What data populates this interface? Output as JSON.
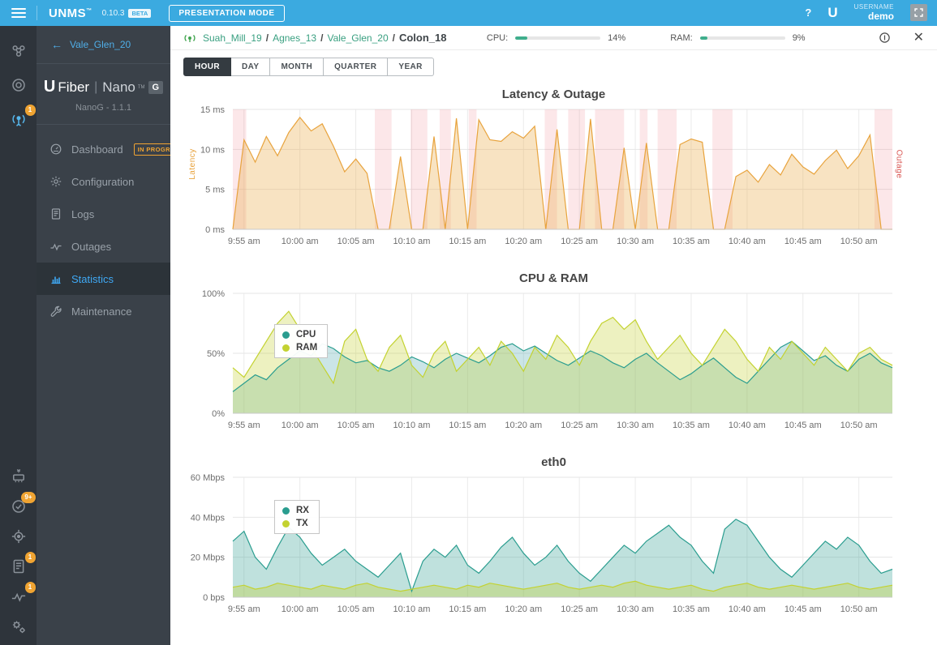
{
  "topbar": {
    "brand": "UNMS",
    "brand_mark": "™",
    "version": "0.10.3",
    "beta_label": "BETA",
    "presentation_mode_label": "PRESENTATION MODE",
    "help_label": "?",
    "ubiquiti_glyph": "U",
    "username_label": "USERNAME",
    "user": "demo",
    "accent_color": "#3BAAE0"
  },
  "rail": {
    "badge_color": "#F0A432",
    "top": [
      {
        "icon": "sites-icon",
        "badge": ""
      },
      {
        "icon": "devices-icon",
        "badge": ""
      },
      {
        "icon": "wireless-icon",
        "badge": "1",
        "active": true
      }
    ],
    "bottom": [
      {
        "icon": "firmware-icon",
        "badge": ""
      },
      {
        "icon": "tasks-icon",
        "badge": "9+"
      },
      {
        "icon": "discovery-icon",
        "badge": ""
      },
      {
        "icon": "logs-icon",
        "badge": "1"
      },
      {
        "icon": "outages-icon",
        "badge": "1"
      },
      {
        "icon": "settings-icon",
        "badge": ""
      }
    ]
  },
  "sidebar": {
    "back_label": "Vale_Glen_20",
    "back_arrow": "←",
    "brand": {
      "u": "U",
      "fiber": "Fiber",
      "pipe": "|",
      "nano": "Nano",
      "tm": "TM",
      "g": "G"
    },
    "model": "NanoG - 1.1.1",
    "items": [
      {
        "label": "Dashboard",
        "icon": "dashboard-icon",
        "badge": "IN PROGRESS",
        "active": false
      },
      {
        "label": "Configuration",
        "icon": "configuration-icon",
        "badge": "",
        "active": false
      },
      {
        "label": "Logs",
        "icon": "logs-icon",
        "badge": "",
        "active": false
      },
      {
        "label": "Outages",
        "icon": "outages-icon",
        "badge": "",
        "active": false
      },
      {
        "label": "Statistics",
        "icon": "statistics-icon",
        "badge": "",
        "active": true
      },
      {
        "label": "Maintenance",
        "icon": "maintenance-icon",
        "badge": "",
        "active": false
      }
    ]
  },
  "header": {
    "breadcrumb": {
      "separator": "/",
      "links": [
        "Suah_Mill_19",
        "Agnes_13",
        "Vale_Glen_20"
      ],
      "current": "Colon_18"
    },
    "cpu": {
      "label": "CPU:",
      "value": "14%",
      "pct": 14
    },
    "ram": {
      "label": "RAM:",
      "value": "9%",
      "pct": 9
    },
    "progress_color": "#3FAE8C",
    "close_glyph": "✕"
  },
  "tabs": {
    "active": "HOUR",
    "items": [
      "HOUR",
      "DAY",
      "MONTH",
      "QUARTER",
      "YEAR"
    ]
  },
  "chart_data": [
    {
      "type": "area",
      "title": "Latency & Outage",
      "ylabel_left": "Latency",
      "ylabel_right": "Outage",
      "ylim": [
        0,
        15
      ],
      "y_ticks": [
        {
          "value": 15,
          "label": "15 ms"
        },
        {
          "value": 10,
          "label": "10 ms"
        },
        {
          "value": 5,
          "label": "5 ms"
        },
        {
          "value": 0,
          "label": "0 ms"
        }
      ],
      "x_range": [
        0,
        59
      ],
      "x_tick_positions": [
        1,
        6,
        11,
        16,
        21,
        26,
        31,
        36,
        41,
        46,
        51,
        56
      ],
      "x_ticks": [
        "9:55 am",
        "10:00 am",
        "10:05 am",
        "10:10 am",
        "10:15 am",
        "10:20 am",
        "10:25 am",
        "10:30 am",
        "10:35 am",
        "10:40 am",
        "10:45 am",
        "10:50 am"
      ],
      "grid": true,
      "legend_position": "none",
      "outage_color": "rgba(235,115,125,0.17)",
      "outage_bands": [
        [
          0,
          1.2
        ],
        [
          12.7,
          14.2
        ],
        [
          15.9,
          17.4
        ],
        [
          18.5,
          19.5
        ],
        [
          21.1,
          21.8
        ],
        [
          27.9,
          29.0
        ],
        [
          30.0,
          31.5
        ],
        [
          32.4,
          35.0
        ],
        [
          36.4,
          37.1
        ],
        [
          38.0,
          39.7
        ],
        [
          42.9,
          44.7
        ],
        [
          57.4,
          59.0
        ]
      ],
      "series": [
        {
          "name": "Latency",
          "color": "#E8A33D",
          "fill": "rgba(235,175,80,0.35)",
          "values": [
            0,
            11.2,
            8.4,
            11.6,
            9.2,
            12.1,
            14,
            12.3,
            13.2,
            10.4,
            7.2,
            8.8,
            7,
            0,
            0,
            9.1,
            0,
            0,
            11.6,
            0,
            13.9,
            0,
            13.7,
            11.2,
            11,
            12.2,
            11.4,
            12.9,
            0,
            12.5,
            0,
            0,
            13.8,
            0,
            0,
            10.2,
            0,
            10.8,
            0,
            0,
            10.6,
            11.3,
            10.9,
            0,
            0,
            6.6,
            7.4,
            5.9,
            8.1,
            6.8,
            9.4,
            7.8,
            6.9,
            8.6,
            9.9,
            7.6,
            9.2,
            11.8,
            0,
            0
          ]
        }
      ]
    },
    {
      "type": "area",
      "title": "CPU & RAM",
      "ylim": [
        0,
        100
      ],
      "y_ticks": [
        {
          "value": 100,
          "label": "100%"
        },
        {
          "value": 50,
          "label": "50%"
        },
        {
          "value": 0,
          "label": "0%"
        }
      ],
      "x_range": [
        0,
        59
      ],
      "x_tick_positions": [
        1,
        6,
        11,
        16,
        21,
        26,
        31,
        36,
        41,
        46,
        51,
        56
      ],
      "x_ticks": [
        "9:55 am",
        "10:00 am",
        "10:05 am",
        "10:10 am",
        "10:15 am",
        "10:20 am",
        "10:25 am",
        "10:30 am",
        "10:35 am",
        "10:40 am",
        "10:45 am",
        "10:50 am"
      ],
      "grid": true,
      "legend_position": "inside-left",
      "series": [
        {
          "name": "CPU",
          "color": "#2A9D8F",
          "fill": "rgba(69,160,168,0.28)",
          "values": [
            18,
            25,
            32,
            28,
            38,
            45,
            52,
            48,
            58,
            54,
            47,
            42,
            44,
            38,
            35,
            40,
            47,
            43,
            38,
            45,
            50,
            46,
            42,
            48,
            55,
            58,
            52,
            56,
            50,
            44,
            40,
            46,
            52,
            48,
            42,
            38,
            45,
            50,
            42,
            35,
            28,
            33,
            40,
            46,
            38,
            30,
            25,
            35,
            45,
            55,
            60,
            52,
            44,
            48,
            40,
            35,
            45,
            50,
            42,
            38
          ]
        },
        {
          "name": "RAM",
          "color": "#C3D230",
          "fill": "rgba(195,210,48,0.30)",
          "values": [
            38,
            30,
            45,
            60,
            75,
            85,
            70,
            55,
            40,
            25,
            60,
            70,
            45,
            35,
            55,
            65,
            40,
            30,
            50,
            60,
            35,
            45,
            55,
            40,
            60,
            50,
            35,
            55,
            45,
            65,
            55,
            40,
            60,
            75,
            80,
            70,
            78,
            60,
            45,
            55,
            65,
            50,
            40,
            55,
            70,
            60,
            45,
            35,
            55,
            45,
            60,
            50,
            40,
            55,
            45,
            35,
            50,
            55,
            45,
            40
          ]
        }
      ]
    },
    {
      "type": "area",
      "title": "eth0",
      "ylim": [
        0,
        60
      ],
      "y_ticks": [
        {
          "value": 60,
          "label": "60 Mbps"
        },
        {
          "value": 40,
          "label": "40 Mbps"
        },
        {
          "value": 20,
          "label": "20 Mbps"
        },
        {
          "value": 0,
          "label": "0 bps"
        }
      ],
      "x_range": [
        0,
        59
      ],
      "x_tick_positions": [
        1,
        6,
        11,
        16,
        21,
        26,
        31,
        36,
        41,
        46,
        51,
        56
      ],
      "x_ticks": [
        "9:55 am",
        "10:00 am",
        "10:05 am",
        "10:10 am",
        "10:15 am",
        "10:20 am",
        "10:25 am",
        "10:30 am",
        "10:35 am",
        "10:40 am",
        "10:45 am",
        "10:50 am"
      ],
      "grid": true,
      "legend_position": "inside-left",
      "series": [
        {
          "name": "RX",
          "color": "#2A9D8F",
          "fill": "rgba(42,157,143,0.30)",
          "values": [
            28,
            33,
            20,
            14,
            25,
            35,
            30,
            22,
            16,
            20,
            24,
            18,
            14,
            10,
            16,
            22,
            3,
            18,
            24,
            20,
            26,
            16,
            12,
            18,
            25,
            30,
            22,
            16,
            20,
            26,
            18,
            12,
            8,
            14,
            20,
            26,
            22,
            28,
            32,
            36,
            30,
            26,
            18,
            12,
            34,
            39,
            36,
            28,
            20,
            14,
            10,
            16,
            22,
            28,
            24,
            30,
            26,
            18,
            12,
            14
          ]
        },
        {
          "name": "TX",
          "color": "#C3D230",
          "fill": "rgba(195,210,48,0.35)",
          "values": [
            5,
            6,
            4,
            5,
            7,
            6,
            5,
            4,
            6,
            5,
            4,
            6,
            7,
            5,
            4,
            3,
            4,
            5,
            6,
            5,
            4,
            6,
            5,
            7,
            6,
            5,
            4,
            5,
            6,
            7,
            5,
            4,
            5,
            6,
            5,
            7,
            8,
            6,
            5,
            4,
            5,
            6,
            4,
            3,
            5,
            6,
            7,
            5,
            4,
            5,
            6,
            5,
            4,
            5,
            6,
            7,
            5,
            4,
            5,
            6
          ]
        }
      ]
    }
  ]
}
